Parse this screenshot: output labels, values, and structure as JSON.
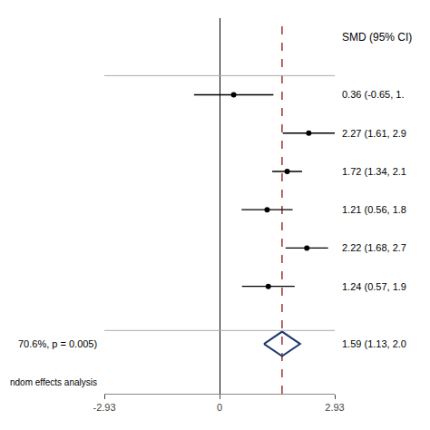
{
  "chart_data": {
    "type": "forest",
    "title": "SMD (95% CI)",
    "studies": [
      {
        "value": 0.36,
        "low": -0.65,
        "high": 1.37,
        "label": "0.36 (-0.65, 1."
      },
      {
        "value": 2.27,
        "low": 1.61,
        "high": 2.93,
        "label": "2.27 (1.61, 2.9"
      },
      {
        "value": 1.72,
        "low": 1.34,
        "high": 2.1,
        "label": "1.72 (1.34, 2.1"
      },
      {
        "value": 1.21,
        "low": 0.56,
        "high": 1.86,
        "label": "1.21 (0.56, 1.8"
      },
      {
        "value": 2.22,
        "low": 1.68,
        "high": 2.76,
        "label": "2.22 (1.68, 2.7"
      },
      {
        "value": 1.24,
        "low": 0.57,
        "high": 1.91,
        "label": "1.24 (0.57, 1.9"
      }
    ],
    "pooled": {
      "value": 1.59,
      "low": 1.13,
      "high": 2.05,
      "label": "1.59 (1.13, 2.0",
      "color": "#1f3a6e"
    },
    "annotations": [
      "70.6%, p = 0.005)",
      "ndom effects analysis"
    ],
    "reference_line": {
      "value": 1.59,
      "color": "#880000",
      "line_style": "dashed"
    },
    "xlim": [
      -2.93,
      2.93
    ],
    "xticks": [
      -2.93,
      0,
      2.93
    ],
    "color": "#000000",
    "marker": "circle",
    "grid": false,
    "tick_labels": "x"
  }
}
